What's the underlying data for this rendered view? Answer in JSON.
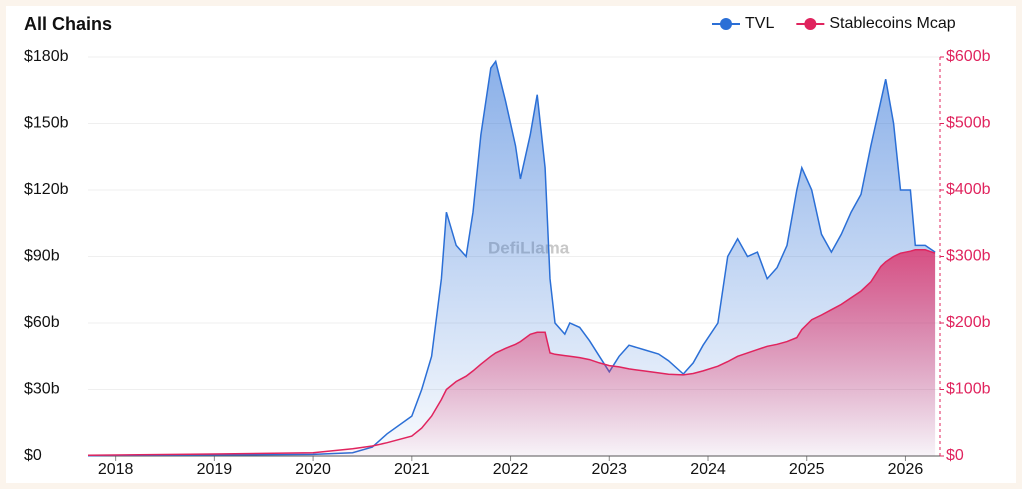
{
  "chart_data": {
    "type": "area",
    "title": "All Chains",
    "watermark": "DefiLlama",
    "legend": "top-right",
    "grid": true,
    "x": [
      2017.72,
      2018.0,
      2019.0,
      2020.0,
      2020.4,
      2020.6,
      2020.75,
      2021.0,
      2021.1,
      2021.2,
      2021.3,
      2021.35,
      2021.45,
      2021.55,
      2021.62,
      2021.7,
      2021.8,
      2021.85,
      2021.95,
      2022.05,
      2022.1,
      2022.2,
      2022.27,
      2022.35,
      2022.4,
      2022.45,
      2022.55,
      2022.6,
      2022.7,
      2022.8,
      2022.9,
      2023.0,
      2023.1,
      2023.2,
      2023.35,
      2023.5,
      2023.6,
      2023.75,
      2023.85,
      2023.95,
      2024.1,
      2024.2,
      2024.3,
      2024.4,
      2024.5,
      2024.6,
      2024.7,
      2024.8,
      2024.9,
      2024.95,
      2025.05,
      2025.15,
      2025.25,
      2025.35,
      2025.45,
      2025.55,
      2025.65,
      2025.75,
      2025.8,
      2025.88,
      2025.95,
      2026.05,
      2026.1,
      2026.2,
      2026.3
    ],
    "series": [
      {
        "name": "TVL",
        "color": "#2b6fd6",
        "axis": "y",
        "values": [
          0.1,
          0.3,
          0.5,
          0.7,
          1.5,
          4,
          10,
          18,
          30,
          45,
          80,
          110,
          95,
          90,
          110,
          145,
          175,
          178,
          160,
          140,
          125,
          145,
          163,
          130,
          80,
          60,
          55,
          60,
          58,
          52,
          45,
          38,
          45,
          50,
          48,
          46,
          43,
          37,
          42,
          50,
          60,
          90,
          98,
          90,
          92,
          80,
          85,
          95,
          120,
          130,
          120,
          100,
          92,
          100,
          110,
          118,
          140,
          160,
          170,
          150,
          120,
          120,
          95,
          95,
          92
        ]
      },
      {
        "name": "Stablecoins Mcap",
        "color": "#e0245e",
        "axis": "y2",
        "values": [
          1,
          1.5,
          3,
          5,
          11,
          15,
          20,
          30,
          42,
          60,
          85,
          100,
          112,
          120,
          128,
          138,
          150,
          155,
          162,
          168,
          172,
          183,
          186,
          186,
          155,
          153,
          151,
          150,
          148,
          145,
          140,
          136,
          134,
          131,
          128,
          125,
          123,
          122,
          124,
          128,
          135,
          142,
          150,
          155,
          160,
          165,
          168,
          172,
          178,
          190,
          205,
          212,
          220,
          228,
          238,
          248,
          262,
          285,
          292,
          300,
          305,
          308,
          310,
          310,
          305
        ]
      }
    ],
    "xlim": [
      2017.72,
      2026.35
    ],
    "xticks": [
      2018,
      2019,
      2020,
      2021,
      2022,
      2023,
      2024,
      2025,
      2026
    ],
    "ylim": [
      0,
      180
    ],
    "yticks": [
      {
        "value": 0,
        "label": "$0"
      },
      {
        "value": 30,
        "label": "$30b"
      },
      {
        "value": 60,
        "label": "$60b"
      },
      {
        "value": 90,
        "label": "$90b"
      },
      {
        "value": 120,
        "label": "$120b"
      },
      {
        "value": 150,
        "label": "$150b"
      },
      {
        "value": 180,
        "label": "$180b"
      }
    ],
    "y2lim": [
      0,
      600
    ],
    "y2ticks": [
      {
        "value": 0,
        "label": "$0"
      },
      {
        "value": 100,
        "label": "$100b"
      },
      {
        "value": 200,
        "label": "$200b"
      },
      {
        "value": 300,
        "label": "$300b"
      },
      {
        "value": 400,
        "label": "$400b"
      },
      {
        "value": 500,
        "label": "$500b"
      },
      {
        "value": 600,
        "label": "$600b"
      }
    ]
  }
}
